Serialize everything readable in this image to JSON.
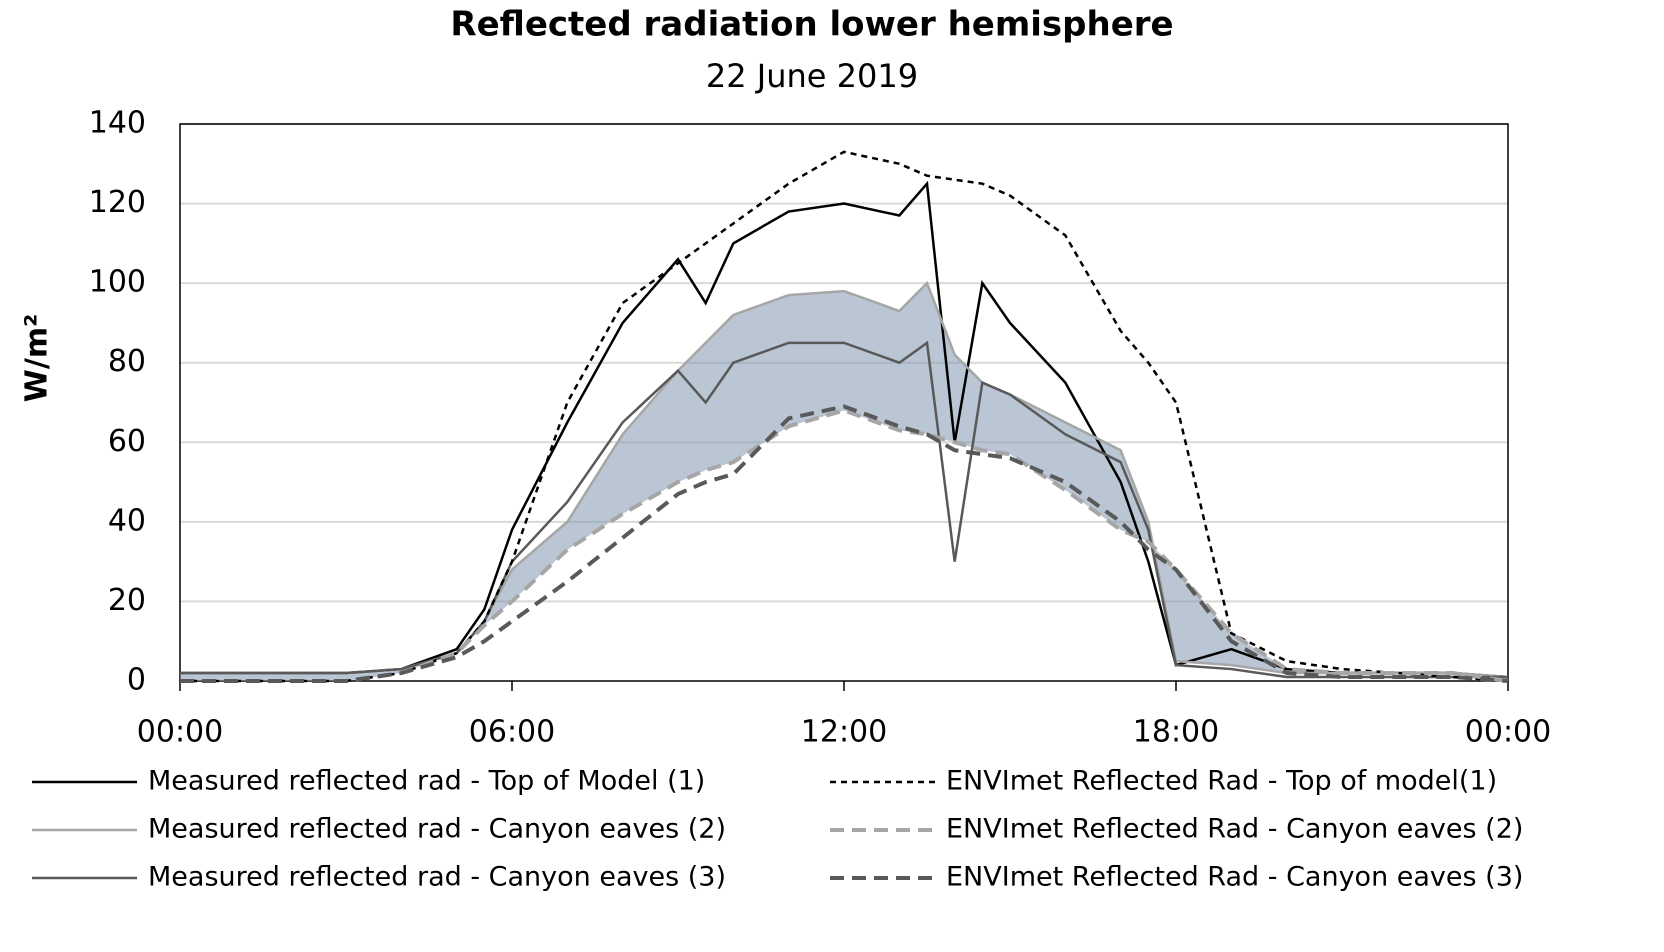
{
  "chart_data": {
    "type": "line",
    "title": "Reflected radiation lower hemisphere",
    "subtitle": "22 June 2019",
    "y_label": "W/m²",
    "x": [
      0,
      1,
      2,
      3,
      4,
      5,
      5.5,
      6,
      7,
      8,
      9,
      9.5,
      10,
      11,
      12,
      13,
      13.5,
      14,
      14.5,
      15,
      16,
      17,
      17.5,
      18,
      19,
      20,
      21,
      22,
      23,
      24
    ],
    "xlim": [
      0,
      24
    ],
    "xticks": [
      {
        "value": 0,
        "label": "00:00"
      },
      {
        "value": 6,
        "label": "06:00"
      },
      {
        "value": 12,
        "label": "12:00"
      },
      {
        "value": 18,
        "label": "18:00"
      },
      {
        "value": 24,
        "label": "00:00"
      }
    ],
    "ylim": [
      0,
      140
    ],
    "yticks": [
      0,
      20,
      40,
      60,
      80,
      100,
      120,
      140
    ],
    "grid": true,
    "band_color": "#8497b0",
    "series": [
      {
        "name": "Measured reflected rad - Top of Model (1)",
        "color": "#000000",
        "style": "solid",
        "values": [
          2,
          2,
          2,
          2,
          3,
          8,
          18,
          38,
          65,
          90,
          106,
          95,
          110,
          118,
          120,
          117,
          125,
          60,
          100,
          90,
          75,
          50,
          30,
          4,
          8,
          3,
          2,
          2,
          2,
          1
        ]
      },
      {
        "name": "Measured reflected rad - Canyon eaves (2)",
        "color": "#a6a6a6",
        "style": "solid",
        "values": [
          2,
          2,
          2,
          2,
          3,
          7,
          15,
          28,
          40,
          62,
          78,
          85,
          92,
          97,
          98,
          93,
          100,
          82,
          75,
          72,
          65,
          58,
          40,
          5,
          4,
          2,
          2,
          2,
          2,
          1
        ]
      },
      {
        "name": "Measured reflected rad - Canyon eaves  (3)",
        "color": "#595959",
        "style": "solid",
        "values": [
          2,
          2,
          2,
          2,
          3,
          7,
          15,
          30,
          45,
          65,
          78,
          70,
          80,
          85,
          85,
          80,
          85,
          30,
          75,
          72,
          62,
          55,
          38,
          4,
          3,
          1,
          1,
          1,
          1,
          1
        ]
      },
      {
        "name": "ENVImet Reflected Rad - Top of model(1)",
        "color": "#000000",
        "style": "dashed",
        "values": [
          0,
          0,
          0,
          0,
          2,
          7,
          15,
          30,
          70,
          95,
          105,
          110,
          115,
          125,
          133,
          130,
          127,
          126,
          125,
          122,
          112,
          88,
          80,
          70,
          12,
          5,
          3,
          2,
          1,
          0
        ]
      },
      {
        "name": "ENVImet Reflected Rad - Canyon eaves (2)",
        "color": "#a6a6a6",
        "style": "dashed",
        "values": [
          0,
          0,
          0,
          0,
          2,
          7,
          14,
          20,
          33,
          42,
          50,
          53,
          55,
          64,
          68,
          63,
          62,
          60,
          58,
          57,
          48,
          38,
          35,
          28,
          12,
          3,
          2,
          2,
          2,
          0
        ]
      },
      {
        "name": "ENVImet Reflected Rad - Canyon eaves (3)",
        "color": "#595959",
        "style": "dashed",
        "values": [
          0,
          0,
          0,
          0,
          2,
          6,
          10,
          15,
          25,
          36,
          47,
          50,
          52,
          66,
          69,
          64,
          62,
          58,
          57,
          56,
          50,
          40,
          33,
          28,
          10,
          2,
          1,
          1,
          1,
          0
        ]
      }
    ]
  }
}
